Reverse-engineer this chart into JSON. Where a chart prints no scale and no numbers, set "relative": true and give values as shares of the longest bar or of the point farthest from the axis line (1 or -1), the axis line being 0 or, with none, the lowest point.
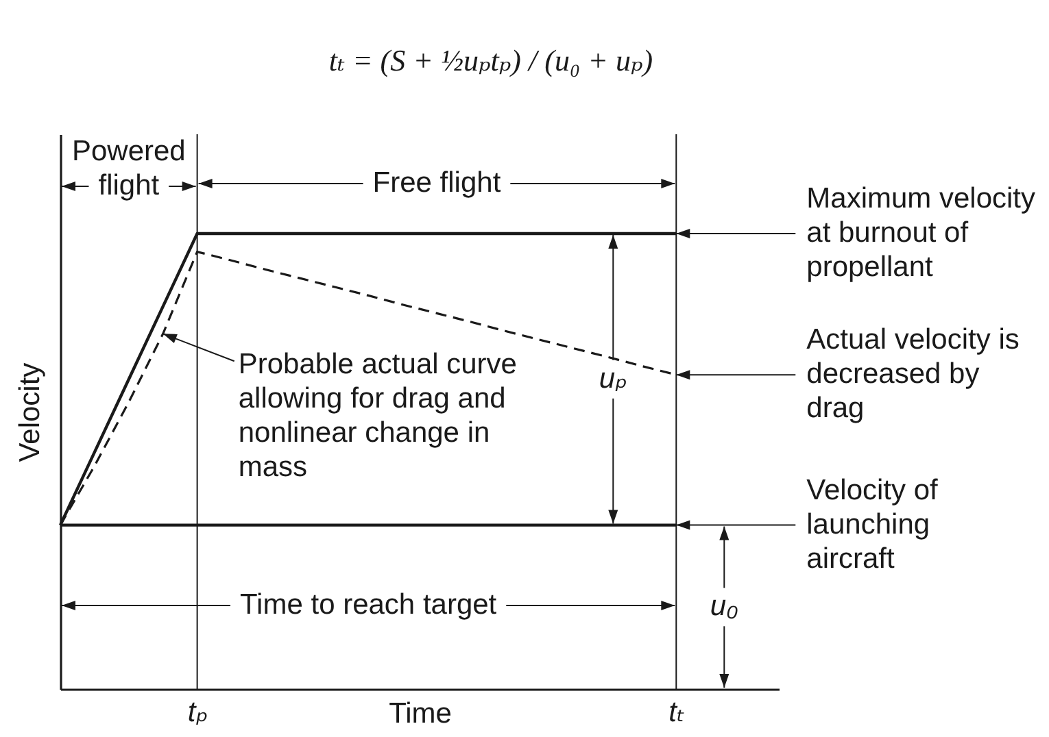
{
  "chart_data": {
    "type": "line",
    "title": "tₜ = (S + ½uₚtₚ) / (u₀ + uₚ)",
    "xlabel": "Time",
    "ylabel": "Velocity",
    "relative": true,
    "tick_labels": "x",
    "line_style": "solid",
    "categories": [
      null,
      null,
      null,
      null,
      "tₚ",
      null,
      null,
      null,
      null,
      null,
      null,
      null,
      null,
      null,
      null,
      null,
      null,
      null,
      "tₜ",
      null,
      null,
      null
    ],
    "series": [
      {
        "color": "#1a1a1a",
        "values": [
          0.36,
          0.52,
          0.68,
          0.84,
          1,
          1,
          1,
          1,
          1,
          1,
          1,
          1,
          1,
          1,
          1,
          1,
          1,
          1,
          1,
          null,
          null,
          null
        ]
      },
      {
        "color": "#1a1a1a",
        "line_style": "dashed",
        "values": [
          0.36,
          0.49,
          0.63,
          0.78,
          0.96,
          0.941,
          0.921,
          0.902,
          0.883,
          0.864,
          0.844,
          0.825,
          0.806,
          0.786,
          0.767,
          0.748,
          0.729,
          0.709,
          0.69,
          null,
          null,
          null
        ]
      },
      {
        "color": "#1a1a1a",
        "values": [
          0.36,
          0.36,
          0.36,
          0.36,
          0.36,
          0.36,
          0.36,
          0.36,
          0.36,
          0.36,
          0.36,
          0.36,
          0.36,
          0.36,
          0.36,
          0.36,
          0.36,
          0.36,
          0.36,
          null,
          null,
          null
        ]
      }
    ],
    "ref_lines": [
      {
        "axis": "x",
        "value": "tₚ"
      },
      {
        "axis": "x",
        "value": "tₜ"
      }
    ],
    "annotations": [
      "Powered\nflight",
      "Free flight",
      "Maximum velocity\nat burnout of\npropellant",
      "Probable actual curve\nallowing for drag and\nnonlinear change in\nmass",
      "uₚ",
      "Actual velocity is\ndecreased by\ndrag",
      "Velocity of\nlaunching\naircraft",
      "Time to reach target",
      "u₀"
    ]
  }
}
